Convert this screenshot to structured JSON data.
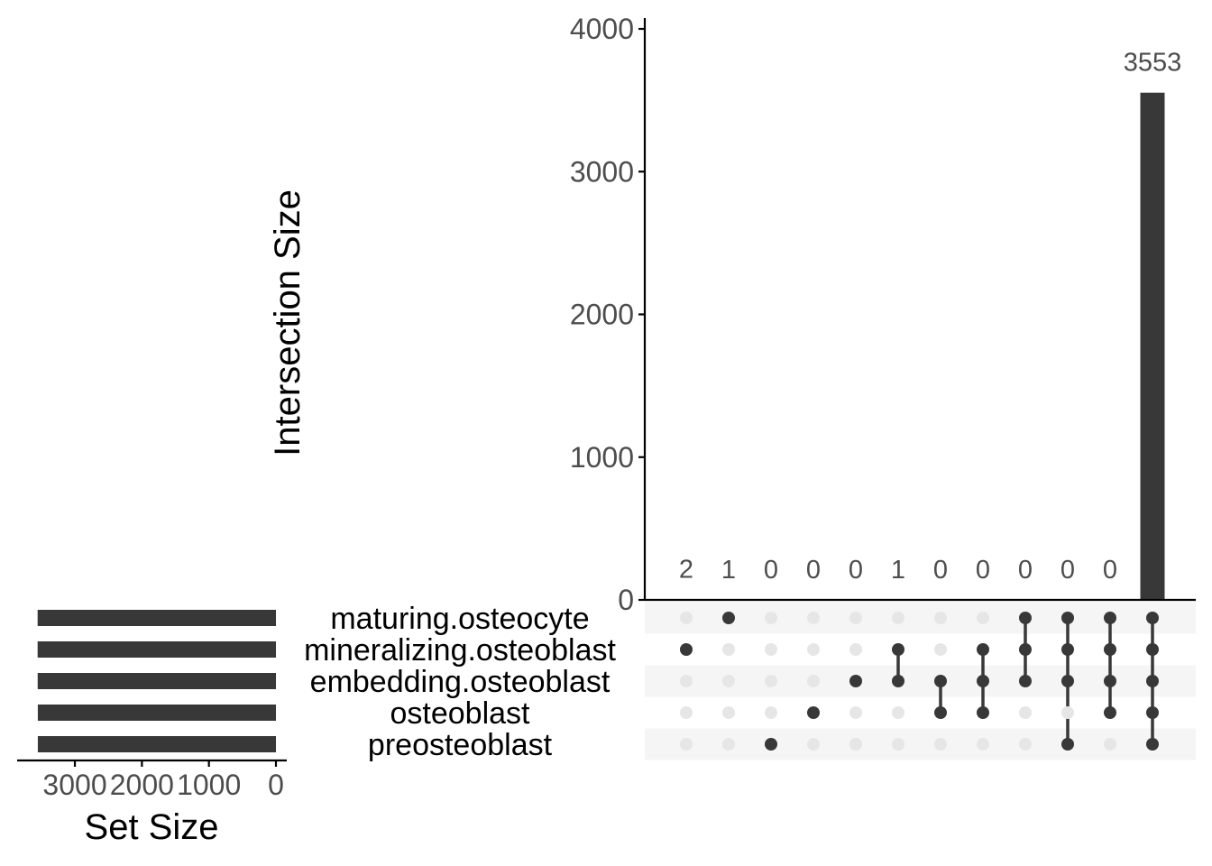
{
  "chart_data": {
    "type": "upset",
    "sets": [
      "maturing.osteocyte",
      "mineralizing.osteoblast",
      "embedding.osteoblast",
      "osteoblast",
      "preosteoblast"
    ],
    "intersections": [
      {
        "size": 2,
        "label": "2",
        "members": [
          "mineralizing.osteoblast"
        ]
      },
      {
        "size": 1,
        "label": "1",
        "members": [
          "maturing.osteocyte"
        ]
      },
      {
        "size": 0,
        "label": "0",
        "members": [
          "preosteoblast"
        ]
      },
      {
        "size": 0,
        "label": "0",
        "members": [
          "osteoblast"
        ]
      },
      {
        "size": 0,
        "label": "0",
        "members": [
          "embedding.osteoblast"
        ]
      },
      {
        "size": 1,
        "label": "1",
        "members": [
          "mineralizing.osteoblast",
          "embedding.osteoblast"
        ]
      },
      {
        "size": 0,
        "label": "0",
        "members": [
          "embedding.osteoblast",
          "osteoblast"
        ]
      },
      {
        "size": 0,
        "label": "0",
        "members": [
          "mineralizing.osteoblast",
          "embedding.osteoblast",
          "osteoblast"
        ]
      },
      {
        "size": 0,
        "label": "0",
        "members": [
          "maturing.osteocyte",
          "mineralizing.osteoblast",
          "embedding.osteoblast"
        ]
      },
      {
        "size": 0,
        "label": "0",
        "members": [
          "maturing.osteocyte",
          "mineralizing.osteoblast",
          "embedding.osteoblast",
          "preosteoblast"
        ]
      },
      {
        "size": 0,
        "label": "0",
        "members": [
          "maturing.osteocyte",
          "mineralizing.osteoblast",
          "embedding.osteoblast",
          "osteoblast"
        ]
      },
      {
        "size": 3553,
        "label": "3553",
        "members": [
          "maturing.osteocyte",
          "mineralizing.osteoblast",
          "embedding.osteoblast",
          "osteoblast",
          "preosteoblast"
        ]
      }
    ],
    "set_sizes": [
      3556,
      3556,
      3555,
      3553,
      3553
    ],
    "intersection_axis": {
      "label": "Intersection Size",
      "ylim": [
        0,
        4000
      ],
      "ticks": [
        0,
        1000,
        2000,
        3000,
        4000
      ]
    },
    "set_size_axis": {
      "label": "Set Size",
      "xlim": [
        3700,
        0
      ],
      "ticks": [
        3000,
        2000,
        1000,
        0
      ]
    },
    "colors": {
      "bar": "#383838",
      "dot_active": "#383838",
      "dot_inactive": "#e6e6e6",
      "stripe": "#f5f5f5",
      "axis": "#000000",
      "tick_text": "#4d4d4d"
    }
  }
}
